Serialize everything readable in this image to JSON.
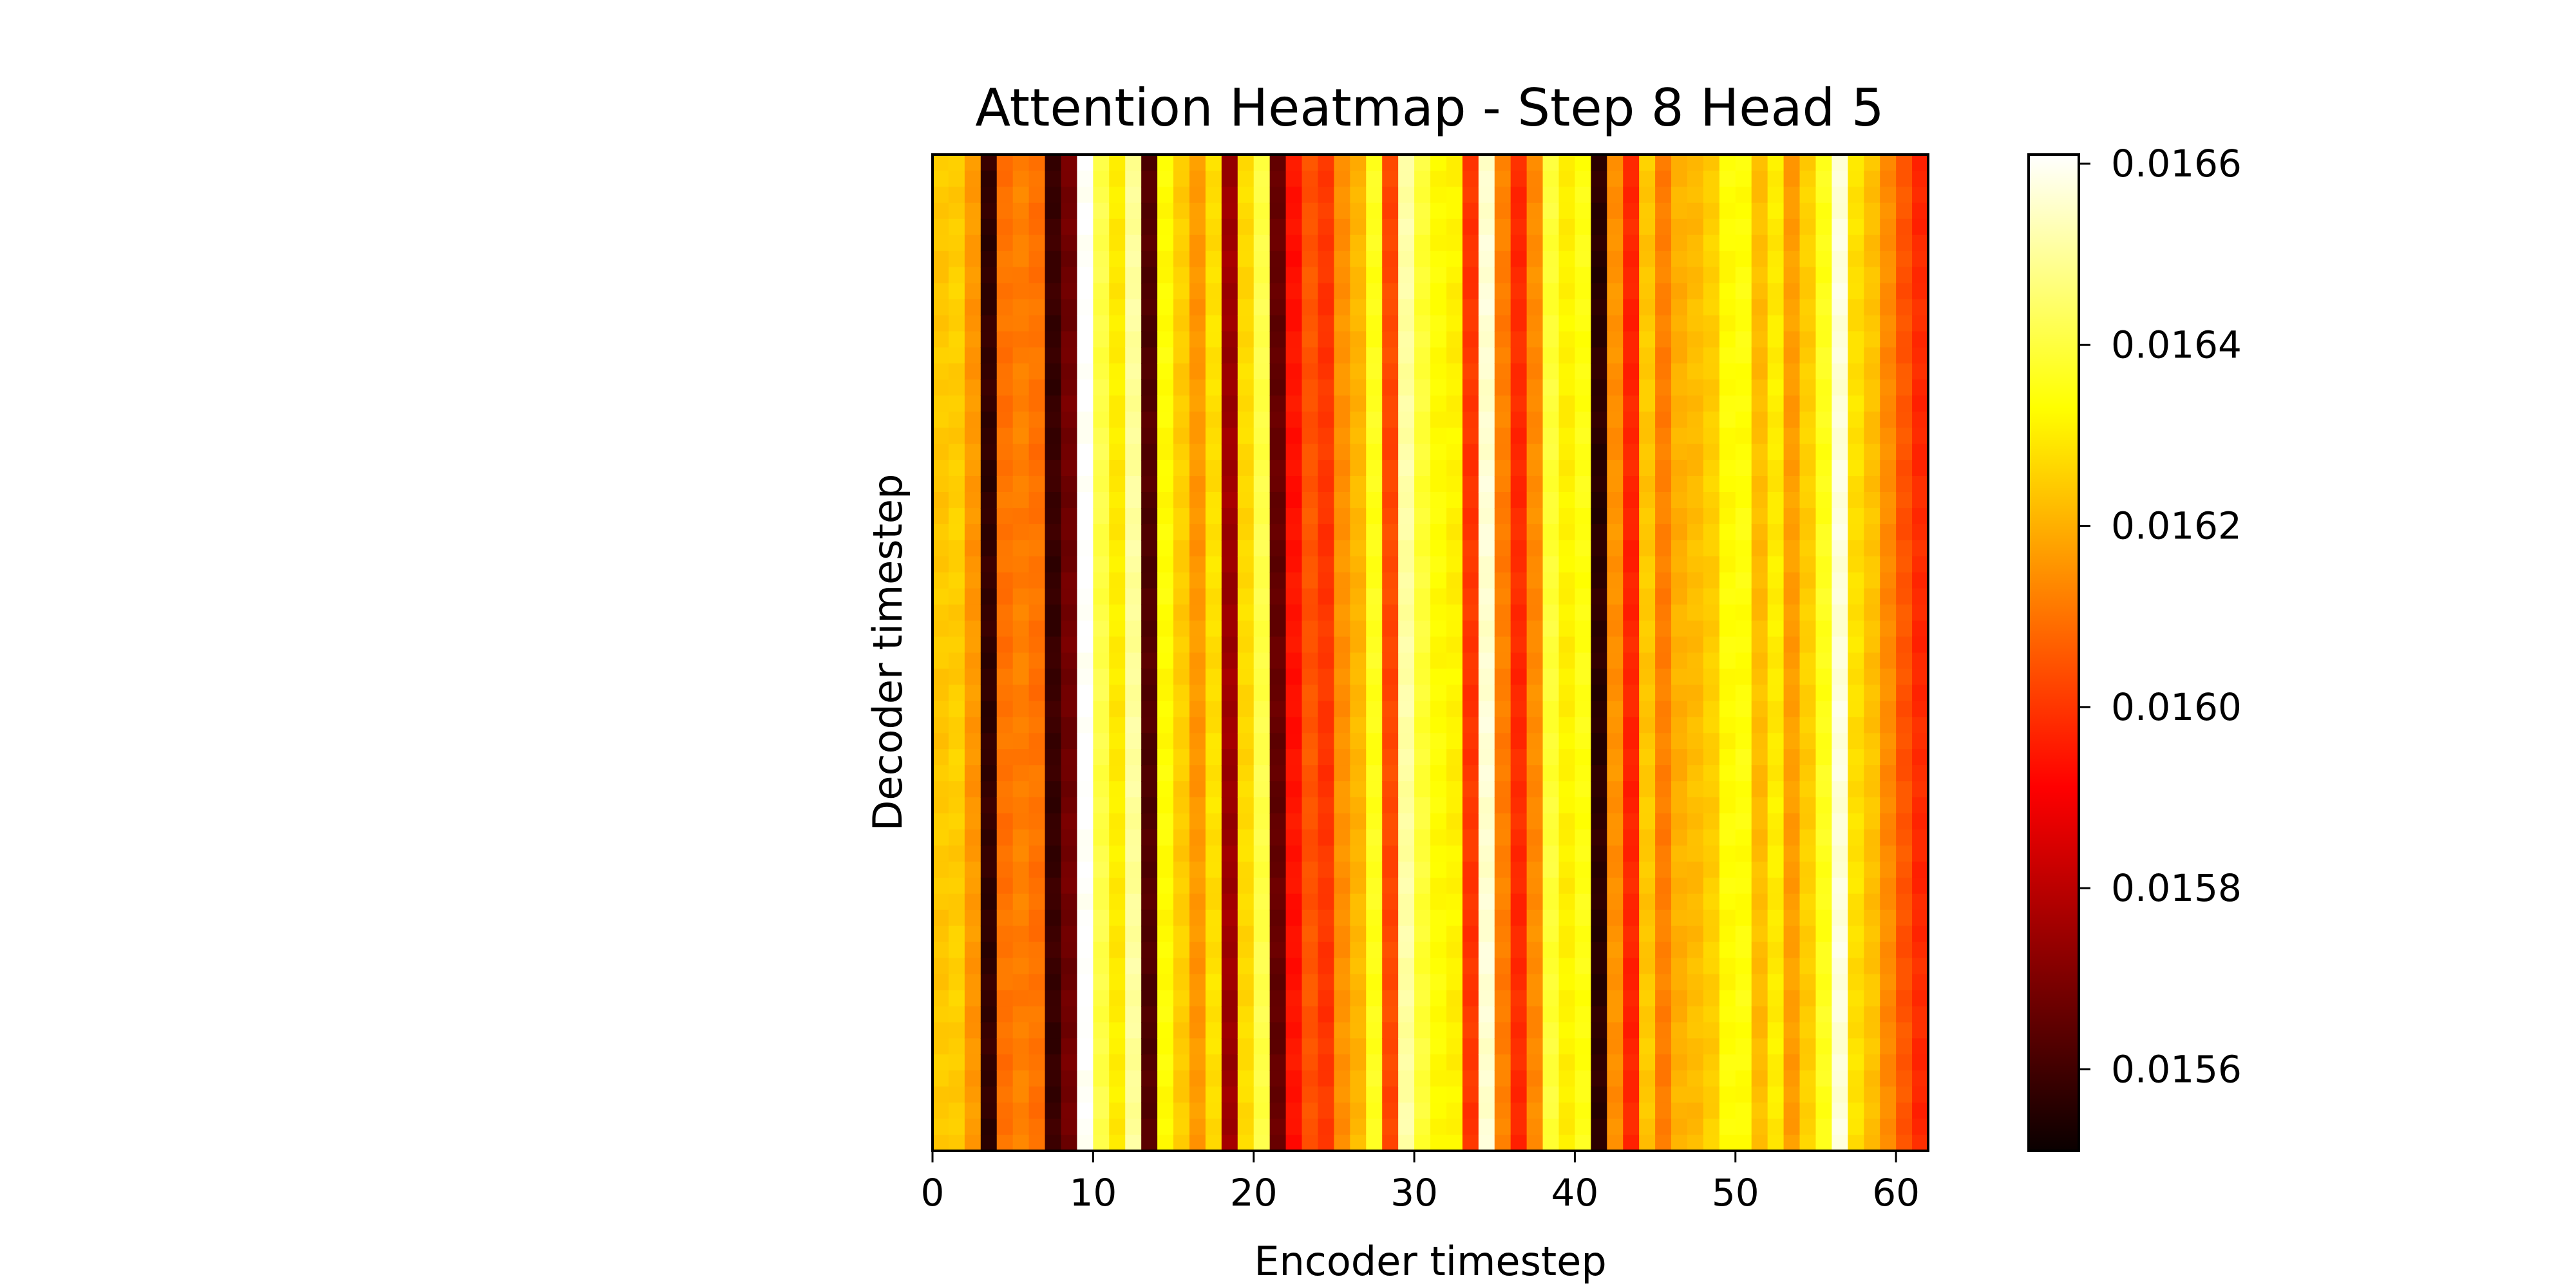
{
  "chart_data": {
    "type": "heatmap",
    "title": "Attention Heatmap - Step 8 Head 5",
    "xlabel": "Encoder timestep",
    "ylabel": "Decoder timestep",
    "colormap": "hot",
    "xlim": [
      0,
      62
    ],
    "xticks": [
      0,
      10,
      20,
      30,
      40,
      50,
      60
    ],
    "rows": 62,
    "colorbar": {
      "range": [
        0.01551,
        0.01661
      ],
      "ticks": [
        "0.0156",
        "0.0158",
        "0.0160",
        "0.0162",
        "0.0164",
        "0.0166"
      ],
      "tick_values": [
        0.0156,
        0.0158,
        0.016,
        0.0162,
        0.0164,
        0.0166
      ]
    },
    "column_means": [
      0.01624,
      0.01625,
      0.01616,
      0.01557,
      0.0161,
      0.01612,
      0.0161,
      0.01558,
      0.01567,
      0.01661,
      0.01641,
      0.0163,
      0.0165,
      0.01562,
      0.01633,
      0.01625,
      0.01616,
      0.01628,
      0.01574,
      0.01627,
      0.01641,
      0.01565,
      0.01594,
      0.01605,
      0.016,
      0.01615,
      0.01621,
      0.01636,
      0.01603,
      0.01651,
      0.01639,
      0.01633,
      0.01631,
      0.016,
      0.01656,
      0.01612,
      0.01598,
      0.01614,
      0.01639,
      0.01631,
      0.01635,
      0.01556,
      0.01615,
      0.01597,
      0.01624,
      0.01612,
      0.0162,
      0.01622,
      0.01625,
      0.01633,
      0.01634,
      0.01622,
      0.0163,
      0.01617,
      0.01625,
      0.01636,
      0.01657,
      0.01628,
      0.01623,
      0.01614,
      0.01605,
      0.01598
    ]
  }
}
